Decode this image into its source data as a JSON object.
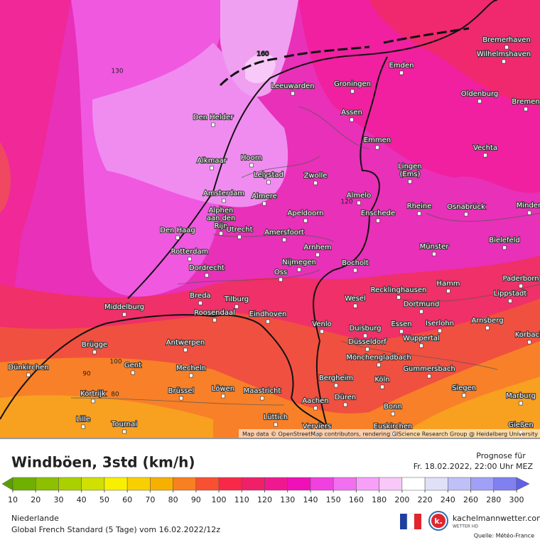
{
  "map": {
    "cities": [
      [
        "Bremerhaven"
      ],
      [
        "Wilhelmshaven"
      ],
      [
        "Emden"
      ],
      [
        "Groningen"
      ],
      [
        "Leeuwarden"
      ],
      [
        "Oldenburg"
      ],
      [
        "Bremen"
      ],
      [
        "Den Helder"
      ],
      [
        "Assen"
      ],
      [
        "Emmen"
      ],
      [
        "Vechta"
      ],
      [
        "Alkmaar"
      ],
      [
        "Hoorn"
      ],
      [
        "Lingen",
        "(Ems)"
      ],
      [
        "Lelystad"
      ],
      [
        "Zwolle"
      ],
      [
        "Amsterdam"
      ],
      [
        "Almere"
      ],
      [
        "Almelo"
      ],
      [
        "Rheine"
      ],
      [
        "Osnabrück"
      ],
      [
        "Minden"
      ],
      [
        "Alphen",
        "aan den",
        "Rijn"
      ],
      [
        "Apeldoorn"
      ],
      [
        "Enschede"
      ],
      [
        "Den Haag"
      ],
      [
        "Utrecht"
      ],
      [
        "Amersfoort"
      ],
      [
        "Bielefeld"
      ],
      [
        "Rotterdam"
      ],
      [
        "Arnhem"
      ],
      [
        "Münster"
      ],
      [
        "Nijmegen"
      ],
      [
        "Bocholt"
      ],
      [
        "Dordrecht"
      ],
      [
        "Oss"
      ],
      [
        "Paderborn"
      ],
      [
        "Hamm"
      ],
      [
        "Recklinghausen"
      ],
      [
        "Lippstadt"
      ],
      [
        "Breda"
      ],
      [
        "Tilburg"
      ],
      [
        "Wesel"
      ],
      [
        "Middelburg"
      ],
      [
        "Dortmund"
      ],
      [
        "Roosendaal"
      ],
      [
        "Eindhoven"
      ],
      [
        "Venlo"
      ],
      [
        "Iserlohn"
      ],
      [
        "Arnsberg"
      ],
      [
        "Essen"
      ],
      [
        "Duisburg"
      ],
      [
        "Korbach"
      ],
      [
        "Wuppertal"
      ],
      [
        "Brügge"
      ],
      [
        "Antwerpen"
      ],
      [
        "Düsseldorf"
      ],
      [
        "Mönchengladbach"
      ],
      [
        "Dünkirchen"
      ],
      [
        "Gent"
      ],
      [
        "Mecheln"
      ],
      [
        "Gummersbach"
      ],
      [
        "Bergheim"
      ],
      [
        "Köln"
      ],
      [
        "Kortrijk"
      ],
      [
        "Brüssel"
      ],
      [
        "Löwen"
      ],
      [
        "Maastricht"
      ],
      [
        "Siegen"
      ],
      [
        "Marburg"
      ],
      [
        "Düren"
      ],
      [
        "Aachen"
      ],
      [
        "Bonn"
      ],
      [
        "Lille"
      ],
      [
        "Lüttich"
      ],
      [
        "Tournai"
      ],
      [
        "Euskirchen"
      ],
      [
        "Gießen"
      ],
      [
        "Verviers"
      ]
    ],
    "contour_labels": [
      "160",
      "130",
      "120",
      "100",
      "90",
      "80"
    ],
    "attribution": "Map data © OpenStreetMap contributors, rendering GIScience Research Group @ Heidelberg University"
  },
  "legend": {
    "title": "Windböen, 3std (km/h)",
    "forecast_label": "Prognose für",
    "forecast_time": "Fr. 18.02.2022, 22:00 Uhr MEZ",
    "region": "Niederlande",
    "model": "Global French Standard (5 Tage) vom 16.02.2022/12z",
    "brand": "kachelmannwetter.com",
    "brand_sub": "WETTER HD",
    "source": "Quelle: Météo-France",
    "colorbar": {
      "ticks": [
        10,
        20,
        30,
        40,
        50,
        60,
        70,
        80,
        90,
        100,
        110,
        120,
        130,
        140,
        150,
        160,
        180,
        200,
        220,
        240,
        260,
        280,
        300
      ],
      "colors": [
        "#58a000",
        "#70b000",
        "#8cc000",
        "#aad000",
        "#d0e000",
        "#f8f000",
        "#f8d000",
        "#f8b000",
        "#f88020",
        "#f85030",
        "#f82848",
        "#f02068",
        "#f01890",
        "#f010b8",
        "#f040e0",
        "#f070f0",
        "#f8a0f8",
        "#f8c8f8",
        "#ffffff",
        "#e0e0f8",
        "#c0c0f8",
        "#a0a0f8",
        "#8080f0",
        "#6060e8"
      ]
    }
  }
}
